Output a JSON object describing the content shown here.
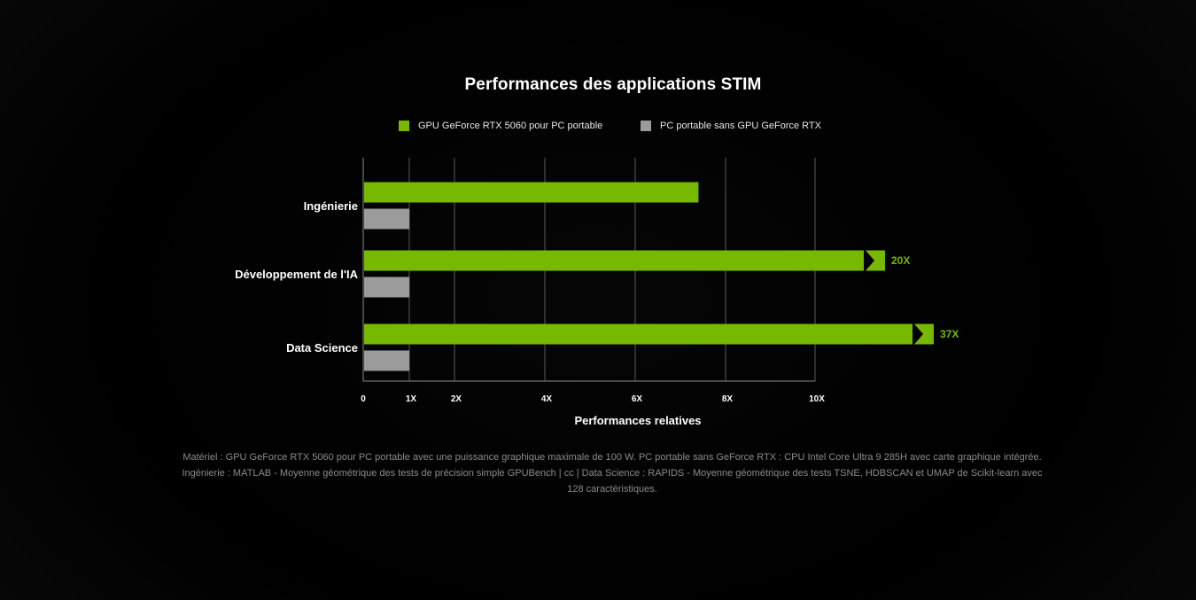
{
  "chart_data": {
    "type": "bar",
    "orientation": "horizontal",
    "title": "Performances des applications STIM",
    "xlabel": "Performances relatives",
    "ylabel": "",
    "categories": [
      "Ingénierie",
      "Développement de l'IA",
      "Data Science"
    ],
    "series": [
      {
        "name": "GPU GeForce RTX 5060 pour PC portable",
        "color": "#76b900",
        "values": [
          7.4,
          20,
          37
        ],
        "value_labels": [
          "",
          "20X",
          "37X"
        ]
      },
      {
        "name": "PC portable sans GPU GeForce RTX",
        "color": "#9b9b9b",
        "values": [
          1,
          1,
          1
        ]
      }
    ],
    "xticks": [
      {
        "value": 0,
        "label": "0"
      },
      {
        "value": 1,
        "label": "1X"
      },
      {
        "value": 2,
        "label": "2X"
      },
      {
        "value": 4,
        "label": "4X"
      },
      {
        "value": 6,
        "label": "6X"
      },
      {
        "value": 8,
        "label": "8X"
      },
      {
        "value": 10,
        "label": "10X"
      }
    ],
    "xlim": [
      0,
      10
    ],
    "axis_break": true,
    "grid": true,
    "legend_position": "top-center"
  },
  "footnote": "Matériel : GPU GeForce RTX 5060 pour PC portable avec une puissance graphique maximale de 100 W. PC portable sans GeForce RTX : CPU Intel Core Ultra 9 285H avec carte graphique intégrée. Ingénierie : MATLAB - Moyenne géométrique des tests de précision simple GPUBench | cc | Data Science : RAPIDS - Moyenne géométrique des tests TSNE, HDBSCAN et UMAP de Scikit-learn avec 128 caractéristiques.",
  "colors": {
    "accent": "#76b900",
    "baseline": "#9b9b9b",
    "grid": "#6a6a6a",
    "background": "#000000"
  }
}
